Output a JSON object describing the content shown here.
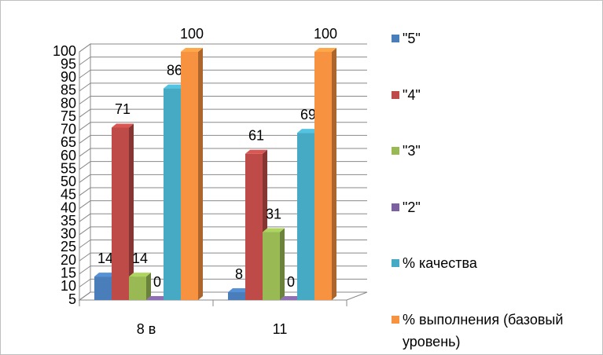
{
  "chart_data": {
    "type": "bar3d",
    "categories": [
      "8 в",
      "11"
    ],
    "series": [
      {
        "name": "\"5\"",
        "color": "#4a7ebb",
        "values": [
          14,
          8
        ]
      },
      {
        "name": "\"4\"",
        "color": "#be4b48",
        "values": [
          71,
          61
        ]
      },
      {
        "name": "\"3\"",
        "color": "#98b954",
        "values": [
          14,
          31
        ]
      },
      {
        "name": "\"2\"",
        "color": "#7d60a0",
        "values": [
          0,
          0
        ]
      },
      {
        "name": "% качества",
        "color": "#46aac5",
        "values": [
          86,
          69
        ]
      },
      {
        "name": "% выполнения (базовый уровень)",
        "color": "#f69240",
        "values": [
          100,
          100
        ]
      }
    ],
    "ylim": [
      5,
      100
    ],
    "yticks": [
      5,
      10,
      15,
      20,
      25,
      30,
      35,
      40,
      45,
      50,
      55,
      60,
      65,
      70,
      75,
      80,
      85,
      90,
      95,
      100
    ],
    "grid": true,
    "legend": "right"
  }
}
